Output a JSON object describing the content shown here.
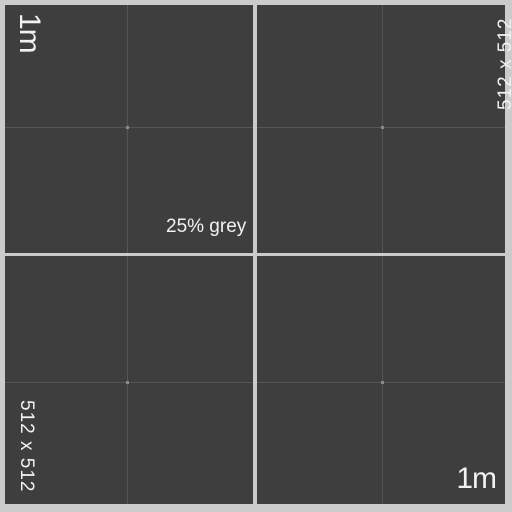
{
  "texture": {
    "scale_label_top": "1m",
    "scale_label_bottom": "1m",
    "size_label_top": "512 x 512",
    "size_label_bottom": "512 x 512",
    "grey_label": "25% grey",
    "colors": {
      "tile": "#3e3e3e",
      "border": "#cbcbcb",
      "grid_line": "#555555",
      "text": "#f2f2f2"
    }
  }
}
